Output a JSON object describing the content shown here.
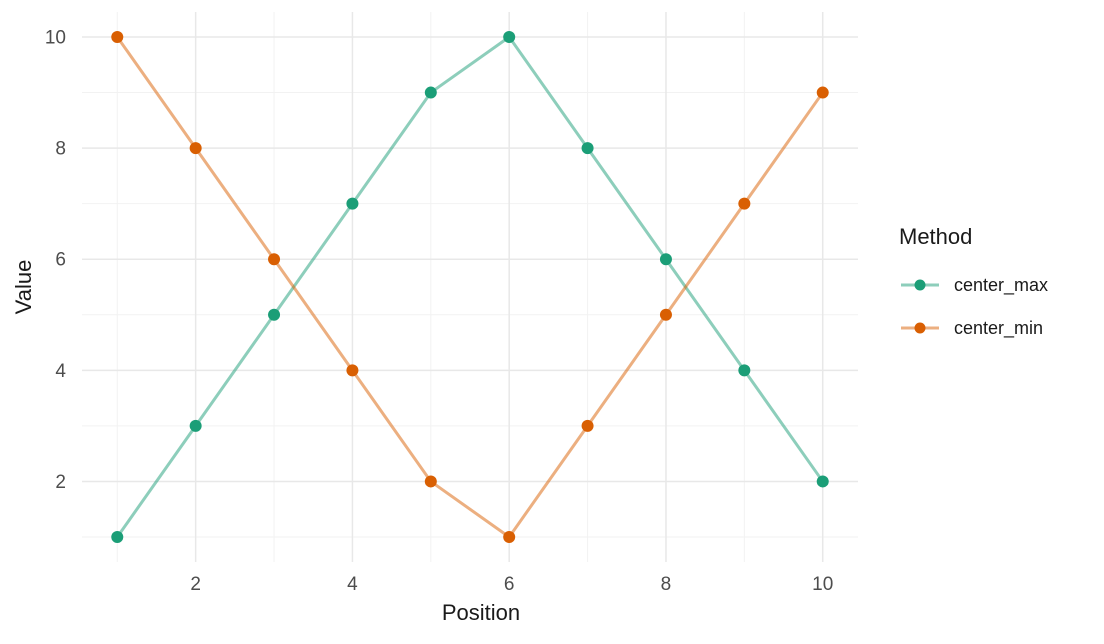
{
  "chart_data": {
    "type": "line",
    "title": "",
    "xlabel": "Position",
    "ylabel": "Value",
    "x": [
      1,
      2,
      3,
      4,
      5,
      6,
      7,
      8,
      9,
      10
    ],
    "series": [
      {
        "name": "center_max",
        "color": "#1B9E77",
        "values": [
          1,
          3,
          5,
          7,
          9,
          10,
          8,
          6,
          4,
          2
        ]
      },
      {
        "name": "center_min",
        "color": "#D95F02",
        "values": [
          10,
          8,
          6,
          4,
          2,
          1,
          3,
          5,
          7,
          9
        ]
      }
    ],
    "legend": {
      "title": "Method",
      "position": "right"
    },
    "xticks": [
      2,
      4,
      6,
      8,
      10
    ],
    "yticks": [
      2,
      4,
      6,
      8,
      10
    ],
    "x_minor_ticks": [
      1,
      3,
      5,
      7,
      9
    ],
    "y_minor_ticks": [
      1,
      3,
      5,
      7,
      9
    ],
    "xlim": [
      0.55,
      10.45
    ],
    "ylim": [
      0.55,
      10.45
    ],
    "grid": "major+minor",
    "line_width": 3,
    "line_opacity": 0.5,
    "point_radius": 6,
    "colors": {
      "background": "#FFFFFF",
      "grid_major": "#E8E8E8",
      "grid_minor": "#F2F2F2",
      "tick_label": "#4D4D4D",
      "axis_title": "#1A1A1A"
    }
  }
}
